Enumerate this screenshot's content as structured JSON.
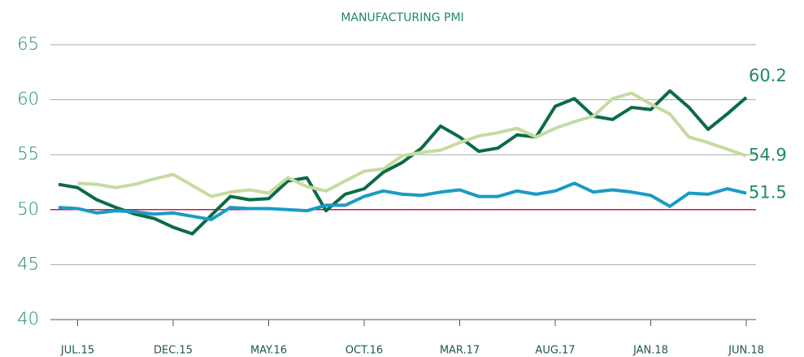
{
  "chart_data": {
    "type": "line",
    "title": "MANUFACTURING PMI",
    "categories": [
      null,
      "JUL.15",
      null,
      null,
      null,
      null,
      "DEC.15",
      null,
      null,
      null,
      null,
      "MAY.16",
      null,
      null,
      null,
      null,
      "OCT.16",
      null,
      null,
      null,
      null,
      "MAR.17",
      null,
      null,
      null,
      null,
      "AUG.17",
      null,
      null,
      null,
      null,
      "JAN.18",
      null,
      null,
      null,
      null,
      "JUN.18"
    ],
    "series": [
      {
        "color": "#0b6b47",
        "values": [
          52.3,
          52.0,
          50.9,
          50.2,
          49.6,
          49.2,
          48.4,
          47.8,
          49.5,
          51.2,
          50.9,
          51.0,
          52.6,
          52.9,
          49.9,
          51.4,
          51.9,
          53.4,
          54.3,
          55.6,
          57.6,
          56.6,
          55.3,
          55.6,
          56.8,
          56.6,
          59.4,
          60.1,
          58.5,
          58.2,
          59.3,
          59.1,
          60.8,
          59.3,
          57.3,
          58.7,
          60.2
        ]
      },
      {
        "color": "#c5dba0",
        "values": [
          null,
          52.4,
          52.3,
          52.0,
          52.3,
          52.8,
          53.2,
          52.2,
          51.2,
          51.6,
          51.8,
          51.5,
          52.9,
          52.1,
          51.7,
          52.6,
          53.5,
          53.7,
          54.9,
          55.2,
          55.4,
          56.1,
          56.7,
          57.0,
          57.4,
          56.6,
          57.4,
          58.0,
          58.5,
          60.1,
          60.6,
          59.6,
          58.7,
          56.6,
          56.1,
          55.5,
          54.9
        ]
      },
      {
        "color": "#1a9bc4",
        "values": [
          50.2,
          50.1,
          49.7,
          49.9,
          49.8,
          49.6,
          49.7,
          49.4,
          49.1,
          50.2,
          50.1,
          50.1,
          50.0,
          49.9,
          50.4,
          50.4,
          51.2,
          51.7,
          51.4,
          51.3,
          51.6,
          51.8,
          51.2,
          51.2,
          51.7,
          51.4,
          51.7,
          52.4,
          51.6,
          51.8,
          51.6,
          51.3,
          50.3,
          51.5,
          51.4,
          51.9,
          51.5
        ]
      }
    ],
    "ylim": [
      40,
      65
    ],
    "yticks": [
      40,
      45,
      50,
      55,
      60,
      65
    ],
    "grid": true,
    "reference_line": {
      "value": 50,
      "color": "#c8194b"
    }
  }
}
